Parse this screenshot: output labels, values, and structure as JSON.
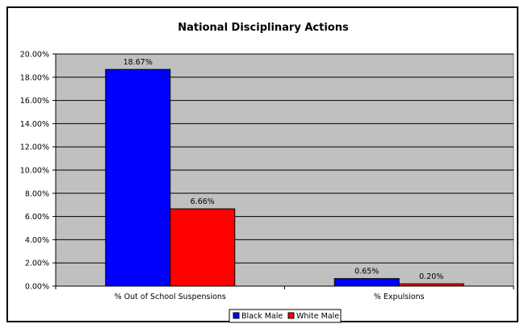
{
  "chart_data": {
    "type": "bar",
    "title": "National Disciplinary Actions",
    "categories": [
      "% Out of School Suspensions",
      "% Expulsions"
    ],
    "series": [
      {
        "name": "Black Male",
        "values": [
          18.67,
          0.65
        ],
        "labels": [
          "18.67%",
          "0.65%"
        ],
        "color": "#0000ff"
      },
      {
        "name": "White Male",
        "values": [
          6.66,
          0.2
        ],
        "labels": [
          "6.66%",
          "0.20%"
        ],
        "color": "#ff0000"
      }
    ],
    "ylim": [
      0,
      20
    ],
    "yticks": [
      "0.00%",
      "2.00%",
      "4.00%",
      "6.00%",
      "8.00%",
      "10.00%",
      "12.00%",
      "14.00%",
      "16.00%",
      "18.00%",
      "20.00%"
    ],
    "grid": true,
    "plot_background": "#c0c0c0",
    "legend": "bottom"
  }
}
